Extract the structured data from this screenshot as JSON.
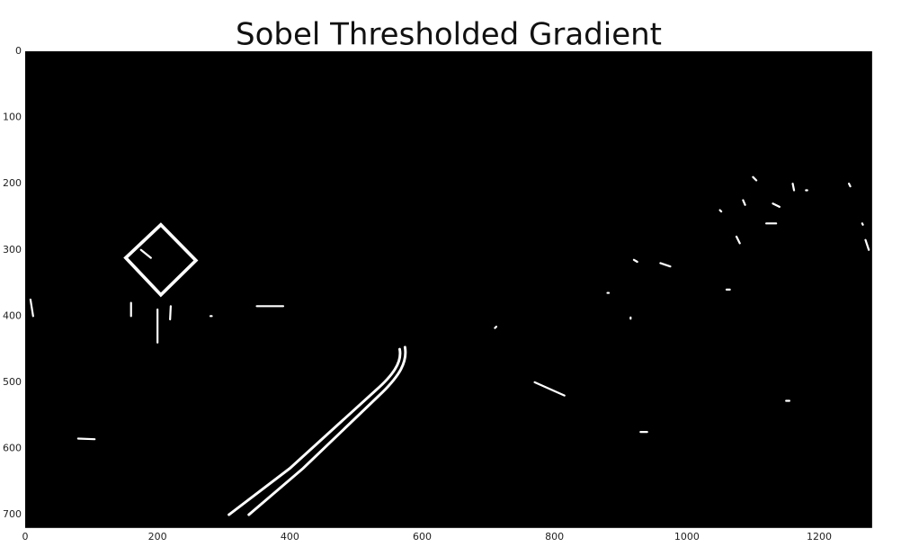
{
  "chart_data": {
    "type": "image",
    "title": "Sobel Thresholded Gradient",
    "xlim": [
      0,
      1280
    ],
    "ylim": [
      720,
      0
    ],
    "xticks": [
      0,
      200,
      400,
      600,
      800,
      1000,
      1200
    ],
    "yticks": [
      0,
      100,
      200,
      300,
      400,
      500,
      600,
      700
    ],
    "background": "#000000",
    "foreground": "#ffffff",
    "grid": false
  }
}
